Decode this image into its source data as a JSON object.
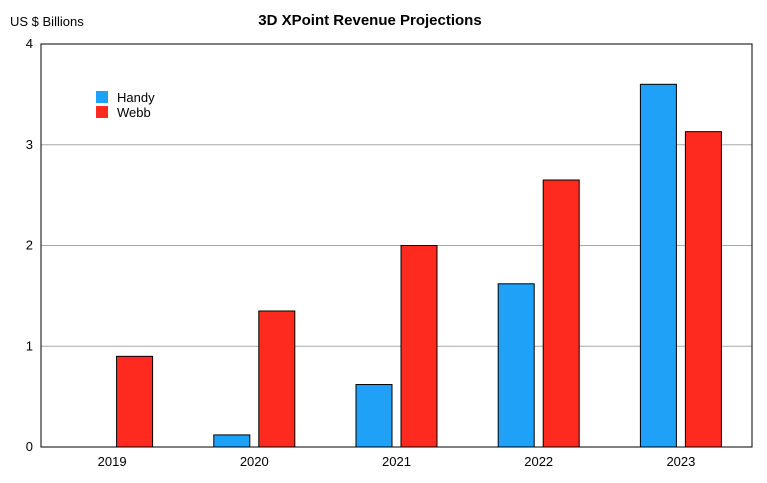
{
  "chart_data": {
    "type": "bar",
    "title": "3D XPoint Revenue Projections",
    "ylabel": "US $ Billions",
    "xlabel": "",
    "categories": [
      "2019",
      "2020",
      "2021",
      "2022",
      "2023"
    ],
    "series": [
      {
        "name": "Handy",
        "color": "#1ea1f7",
        "values": [
          0,
          0.12,
          0.62,
          1.62,
          3.6
        ]
      },
      {
        "name": "Webb",
        "color": "#ff2a1f",
        "values": [
          0.9,
          1.35,
          2.0,
          2.65,
          3.13
        ]
      }
    ],
    "ylim": [
      0,
      4
    ],
    "yticks": [
      "0",
      "1",
      "2",
      "3",
      "4"
    ],
    "grid": true,
    "legend_position": "top-left"
  }
}
